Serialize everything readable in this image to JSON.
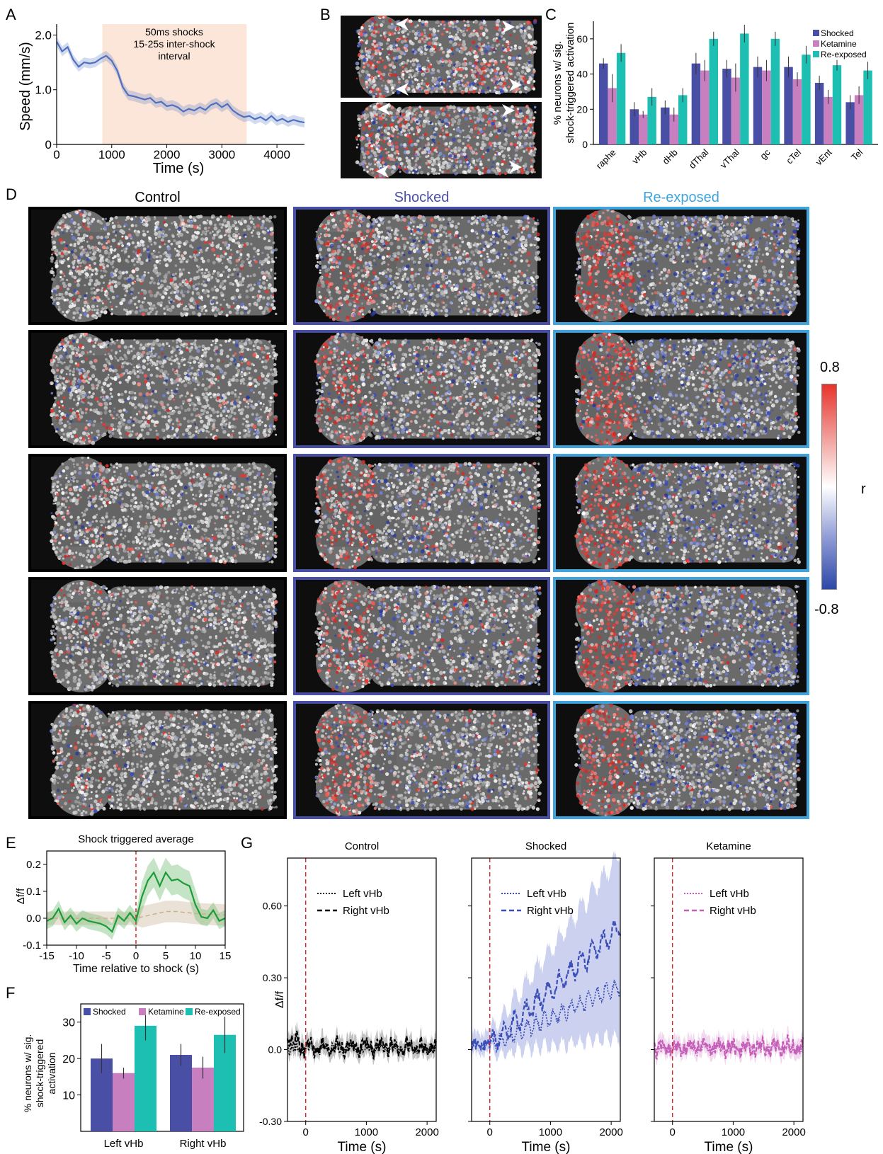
{
  "panels": {
    "A": "A",
    "B": "B",
    "C": "C",
    "D": "D",
    "E": "E",
    "F": "F",
    "G": "G"
  },
  "colors": {
    "shocked": "#4a4fa6",
    "ketamine": "#c77fc0",
    "reexposed": "#1ebfb3",
    "control_border": "#000000",
    "shocked_border": "#4a4fa6",
    "reexposed_border": "#3fa3dc",
    "shock_window": "#fbe6d9",
    "speed_line": "#4f6fc0"
  },
  "d": {
    "headers": [
      "Control",
      "Shocked",
      "Re-exposed"
    ],
    "colorbar": {
      "max": "0.8",
      "min": "-0.8",
      "label": "r"
    }
  },
  "chart_data": [
    {
      "id": "A",
      "type": "line",
      "title": "",
      "annotation": [
        "50ms shocks",
        "15-25s inter-shock",
        "interval"
      ],
      "xlabel": "Time (s)",
      "ylabel": "Speed (mm/s)",
      "xlim": [
        0,
        4500
      ],
      "ylim": [
        0,
        2.2
      ],
      "xticks": [
        "0",
        "1000",
        "2000",
        "3000",
        "4000"
      ],
      "yticks": [
        "0",
        "1.0",
        "2.0"
      ],
      "shock_window": [
        830,
        3450
      ],
      "x": [
        0,
        100,
        200,
        300,
        400,
        500,
        600,
        700,
        800,
        900,
        1000,
        1100,
        1200,
        1300,
        1400,
        1500,
        1600,
        1700,
        1800,
        1900,
        2000,
        2100,
        2200,
        2300,
        2400,
        2500,
        2600,
        2700,
        2800,
        2900,
        3000,
        3100,
        3200,
        3300,
        3400,
        3500,
        3600,
        3700,
        3800,
        3900,
        4000,
        4100,
        4200,
        4300,
        4400,
        4500
      ],
      "y": [
        1.88,
        1.7,
        1.78,
        1.55,
        1.42,
        1.5,
        1.48,
        1.5,
        1.57,
        1.62,
        1.53,
        1.35,
        1.05,
        0.9,
        0.88,
        0.85,
        0.82,
        0.85,
        0.76,
        0.78,
        0.7,
        0.72,
        0.68,
        0.6,
        0.65,
        0.62,
        0.68,
        0.63,
        0.72,
        0.76,
        0.68,
        0.74,
        0.62,
        0.55,
        0.5,
        0.52,
        0.46,
        0.5,
        0.44,
        0.52,
        0.43,
        0.47,
        0.41,
        0.45,
        0.42,
        0.4
      ]
    },
    {
      "id": "C",
      "type": "bar",
      "ylabel": "% neurons w/ sig. shock-triggered activation",
      "ylim": [
        0,
        70
      ],
      "yticks": [
        "0",
        "20",
        "40",
        "60"
      ],
      "categories": [
        "raphe",
        "vHb",
        "dHb",
        "dThal",
        "vThal",
        "gc",
        "cTel",
        "vEnt",
        "Tel"
      ],
      "legend_position": "top-right",
      "series": [
        {
          "name": "Shocked",
          "values": [
            46,
            20,
            21,
            46,
            43,
            44,
            44,
            35,
            24
          ],
          "err": [
            3,
            4,
            4,
            6,
            5,
            6,
            6,
            4,
            4
          ]
        },
        {
          "name": "Ketamine",
          "values": [
            32,
            17,
            17,
            42,
            38,
            42,
            37,
            27,
            28
          ],
          "err": [
            8,
            2,
            4,
            6,
            8,
            6,
            4,
            4,
            5
          ]
        },
        {
          "name": "Re-exposed",
          "values": [
            52,
            27,
            28,
            60,
            63,
            60,
            51,
            45,
            42
          ],
          "err": [
            5,
            5,
            4,
            4,
            5,
            4,
            5,
            3,
            5
          ]
        }
      ]
    },
    {
      "id": "E",
      "type": "line",
      "title": "Shock triggered average",
      "xlabel": "Time relative to shock (s)",
      "ylabel": "Δf/f",
      "xlim": [
        -15,
        15
      ],
      "ylim": [
        -0.1,
        0.25
      ],
      "xticks": [
        "-15",
        "-10",
        "-5",
        "0",
        "5",
        "10",
        "15"
      ],
      "yticks": [
        "-0.1",
        "0.0",
        "0.1",
        "0.2"
      ],
      "x": [
        -15,
        -14,
        -13,
        -12,
        -11,
        -10,
        -9,
        -8,
        -7,
        -6,
        -5,
        -4,
        -3,
        -2,
        -1,
        0,
        1,
        2,
        3,
        4,
        5,
        6,
        7,
        8,
        9,
        10,
        11,
        12,
        13,
        14,
        15
      ],
      "y": [
        -0.01,
        0.0,
        0.035,
        -0.015,
        0.01,
        -0.02,
        0.0,
        -0.01,
        -0.015,
        -0.02,
        -0.03,
        -0.05,
        0.01,
        -0.01,
        0.02,
        -0.01,
        0.08,
        0.14,
        0.17,
        0.12,
        0.17,
        0.14,
        0.145,
        0.13,
        0.12,
        0.05,
        0.005,
        0.0,
        0.03,
        -0.01,
        0.0
      ],
      "control_y": [
        0.0,
        0.0,
        0.0,
        0.0,
        0.0,
        0.0,
        0.0,
        0.0,
        0.0,
        0.0,
        0.0,
        0.0,
        0.0,
        0.0,
        0.0,
        0.0,
        0.005,
        0.01,
        0.015,
        0.02,
        0.025,
        0.025,
        0.025,
        0.022,
        0.02,
        0.018,
        0.016,
        0.015,
        0.014,
        0.013,
        0.012
      ]
    },
    {
      "id": "F",
      "type": "bar",
      "ylabel": "% neurons w/ sig. shock-triggered activation",
      "ylim": [
        0,
        35
      ],
      "yticks": [
        "10",
        "20",
        "30"
      ],
      "categories": [
        "Left vHb",
        "Right vHb"
      ],
      "legend_position": "top",
      "series": [
        {
          "name": "Shocked",
          "values": [
            20,
            21
          ],
          "err": [
            4,
            3
          ]
        },
        {
          "name": "Ketamine",
          "values": [
            16,
            17.5
          ],
          "err": [
            1.5,
            3
          ]
        },
        {
          "name": "Re-exposed",
          "values": [
            29,
            26.5
          ],
          "err": [
            4,
            5
          ]
        }
      ]
    },
    {
      "id": "G",
      "type": "line",
      "ylabel": "Δf/f",
      "xlabel": "Time (s)",
      "xlim": [
        -300,
        2150
      ],
      "ylim": [
        -0.3,
        0.8
      ],
      "xticks": [
        "0",
        "1000",
        "2000"
      ],
      "yticks": [
        "-0.30",
        "0.0",
        "0.30",
        "0.60"
      ],
      "subplots": [
        {
          "title": "Control",
          "series": [
            {
              "name": "Left vHb"
            },
            {
              "name": "Right vHb"
            }
          ]
        },
        {
          "title": "Shocked",
          "series": [
            {
              "name": "Left vHb"
            },
            {
              "name": "Right vHb"
            }
          ]
        },
        {
          "title": "Ketamine",
          "series": [
            {
              "name": "Left vHb"
            },
            {
              "name": "Right vHb"
            }
          ]
        }
      ]
    }
  ]
}
